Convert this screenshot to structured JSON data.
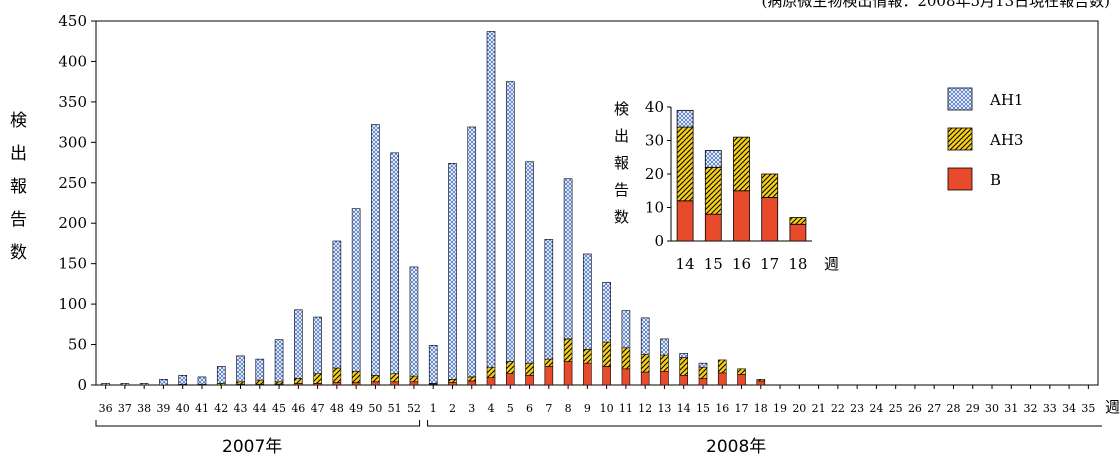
{
  "source_note": "(病原微生物検出情報：2008年5月13日現在報告数)",
  "y_axis_label": "検出報告数",
  "x_axis_unit": "週",
  "year_labels": [
    "2007年",
    "2008年"
  ],
  "colors": {
    "AH1": "#4a73c9",
    "AH3": "#f5cf1b",
    "B": "#e84a2c"
  },
  "chart_data": [
    {
      "type": "bar",
      "stacked": true,
      "ylim": [
        0,
        450
      ],
      "yticks": [
        0,
        50,
        100,
        150,
        200,
        250,
        300,
        350,
        400,
        450
      ],
      "categories": [
        "36",
        "37",
        "38",
        "39",
        "40",
        "41",
        "42",
        "43",
        "44",
        "45",
        "46",
        "47",
        "48",
        "49",
        "50",
        "51",
        "52",
        "1",
        "2",
        "3",
        "4",
        "5",
        "6",
        "7",
        "8",
        "9",
        "10",
        "11",
        "12",
        "13",
        "14",
        "15",
        "16",
        "17",
        "18",
        "19",
        "20",
        "21",
        "22",
        "23",
        "24",
        "25",
        "26",
        "27",
        "28",
        "29",
        "30",
        "31",
        "32",
        "33",
        "34",
        "35"
      ],
      "legend_position": "right",
      "series": [
        {
          "name": "B",
          "values": [
            0,
            0,
            0,
            0,
            0,
            0,
            0,
            1,
            1,
            1,
            2,
            2,
            3,
            3,
            4,
            4,
            4,
            1,
            3,
            5,
            9,
            14,
            12,
            23,
            29,
            27,
            23,
            20,
            16,
            17,
            12,
            8,
            15,
            13,
            5,
            0,
            0,
            0,
            0,
            0,
            0,
            0,
            0,
            0,
            0,
            0,
            0,
            0,
            0,
            0,
            0,
            0
          ]
        },
        {
          "name": "AH3",
          "values": [
            0,
            0,
            0,
            0,
            1,
            1,
            2,
            3,
            5,
            3,
            6,
            12,
            18,
            14,
            8,
            10,
            7,
            1,
            4,
            5,
            13,
            15,
            15,
            9,
            28,
            17,
            30,
            26,
            22,
            20,
            22,
            14,
            16,
            7,
            2,
            0,
            0,
            0,
            0,
            0,
            0,
            0,
            0,
            0,
            0,
            0,
            0,
            0,
            0,
            0,
            0,
            0
          ]
        },
        {
          "name": "AH1",
          "values": [
            2,
            2,
            2,
            7,
            11,
            9,
            21,
            32,
            26,
            52,
            85,
            70,
            157,
            201,
            310,
            273,
            135,
            47,
            267,
            309,
            415,
            346,
            249,
            148,
            198,
            118,
            74,
            46,
            45,
            20,
            5,
            5,
            0,
            0,
            0,
            0,
            0,
            0,
            0,
            0,
            0,
            0,
            0,
            0,
            0,
            0,
            0,
            0,
            0,
            0,
            0,
            0
          ]
        }
      ]
    },
    {
      "type": "bar",
      "stacked": true,
      "inset": true,
      "ylim": [
        0,
        40
      ],
      "yticks": [
        0,
        10,
        20,
        30,
        40
      ],
      "categories": [
        "14",
        "15",
        "16",
        "17",
        "18"
      ],
      "series": [
        {
          "name": "B",
          "values": [
            12,
            8,
            15,
            13,
            5
          ]
        },
        {
          "name": "AH3",
          "values": [
            22,
            14,
            16,
            7,
            2
          ]
        },
        {
          "name": "AH1",
          "values": [
            5,
            5,
            0,
            0,
            0
          ]
        }
      ]
    }
  ]
}
